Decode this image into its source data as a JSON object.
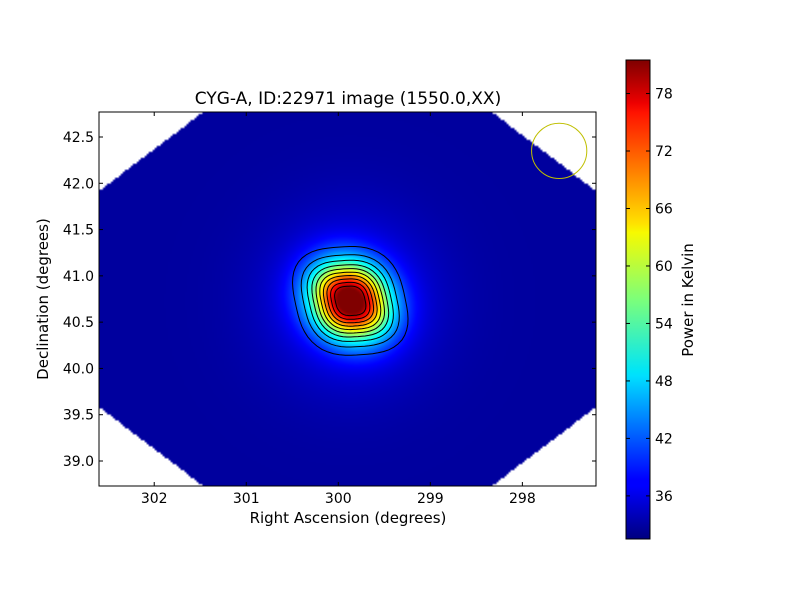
{
  "chart_data": {
    "type": "heatmap",
    "title": "CYG-A, ID:22971 image (1550.0,XX)",
    "xlabel": "Right Ascension (degrees)",
    "ylabel": "Declination (degrees)",
    "colorbar_label": "Power in Kelvin",
    "colormap": "jet",
    "grid": false,
    "x_axis": {
      "range": [
        302.6,
        297.2
      ],
      "inverted": true,
      "ticks": [
        302,
        301,
        300,
        299,
        298
      ],
      "tick_labels": [
        "302",
        "301",
        "300",
        "299",
        "298"
      ]
    },
    "y_axis": {
      "range": [
        38.73,
        42.77
      ],
      "ticks": [
        39.0,
        39.5,
        40.0,
        40.5,
        41.0,
        41.5,
        42.0,
        42.5
      ],
      "tick_labels": [
        "39.0",
        "39.5",
        "40.0",
        "40.5",
        "41.0",
        "41.5",
        "42.0",
        "42.5"
      ]
    },
    "colorbar": {
      "range": [
        31.5,
        81.5
      ],
      "ticks": [
        36,
        42,
        48,
        54,
        60,
        66,
        72,
        78
      ],
      "tick_labels": [
        "36",
        "42",
        "48",
        "54",
        "60",
        "66",
        "72",
        "78"
      ]
    },
    "source_peak": {
      "ra": 299.87,
      "dec": 40.73,
      "value": 81
    },
    "background_value": 33,
    "contour_levels": [
      36,
      40,
      44,
      48,
      52,
      56,
      60,
      64,
      68,
      72,
      76
    ],
    "beam_circle": {
      "ra": 297.6,
      "dec": 42.35,
      "radius_deg": 0.3,
      "color": "#bfbf00"
    },
    "coverage": "diamond-shaped map footprint, blank corners"
  }
}
